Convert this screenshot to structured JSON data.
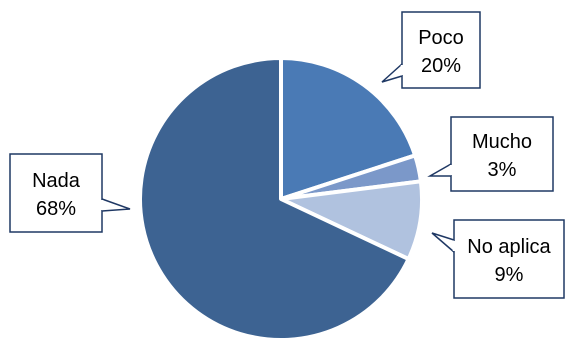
{
  "chart_data": {
    "type": "pie",
    "title": "",
    "slices": [
      {
        "label": "Poco",
        "value": 20,
        "value_label": "20%",
        "color": "#4a7ab5"
      },
      {
        "label": "Mucho",
        "value": 3,
        "value_label": "3%",
        "color": "#7b98c9"
      },
      {
        "label": "No aplica",
        "value": 9,
        "value_label": "9%",
        "color": "#b0c2df"
      },
      {
        "label": "Nada",
        "value": 68,
        "value_label": "68%",
        "color": "#3d6392"
      }
    ],
    "start_angle_deg": 0,
    "direction": "clockwise",
    "legend": "none",
    "data_labels": "callouts"
  }
}
